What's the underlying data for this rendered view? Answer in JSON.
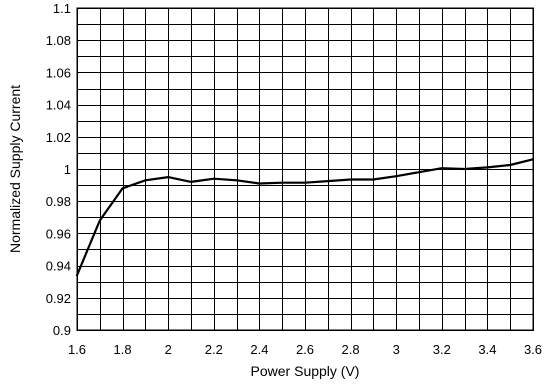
{
  "chart_data": {
    "type": "line",
    "title": "",
    "xlabel": "Power Supply (V)",
    "ylabel": "Normalized Supply Current",
    "xlim": [
      1.6,
      3.6
    ],
    "ylim": [
      0.9,
      1.1
    ],
    "x_ticks": [
      1.6,
      1.8,
      2.0,
      2.2,
      2.4,
      2.6,
      2.8,
      3.0,
      3.2,
      3.4,
      3.6
    ],
    "x_tick_labels": [
      "1.6",
      "1.8",
      "2",
      "2.2",
      "2.4",
      "2.6",
      "2.8",
      "3",
      "3.2",
      "3.4",
      "3.6"
    ],
    "x_minor_step": 0.1,
    "y_ticks": [
      0.9,
      0.92,
      0.94,
      0.96,
      0.98,
      1.0,
      1.02,
      1.04,
      1.06,
      1.08,
      1.1
    ],
    "y_tick_labels": [
      "0.9",
      "0.92",
      "0.94",
      "0.96",
      "0.98",
      "1",
      "1.02",
      "1.04",
      "1.06",
      "1.08",
      "1.1"
    ],
    "y_minor_step": 0.01,
    "grid": true,
    "legend": "none",
    "line_color": "#000000",
    "series": [
      {
        "x": [
          1.6,
          1.7,
          1.8,
          1.9,
          2.0,
          2.1,
          2.2,
          2.3,
          2.4,
          2.5,
          2.6,
          2.7,
          2.8,
          2.9,
          3.0,
          3.1,
          3.2,
          3.3,
          3.4,
          3.5,
          3.6
        ],
        "y": [
          0.934,
          0.968,
          0.988,
          0.993,
          0.995,
          0.992,
          0.994,
          0.993,
          0.991,
          0.9915,
          0.9915,
          0.9925,
          0.9935,
          0.9935,
          0.9955,
          0.998,
          1.0005,
          1.0,
          1.001,
          1.0025,
          1.006
        ]
      }
    ]
  }
}
